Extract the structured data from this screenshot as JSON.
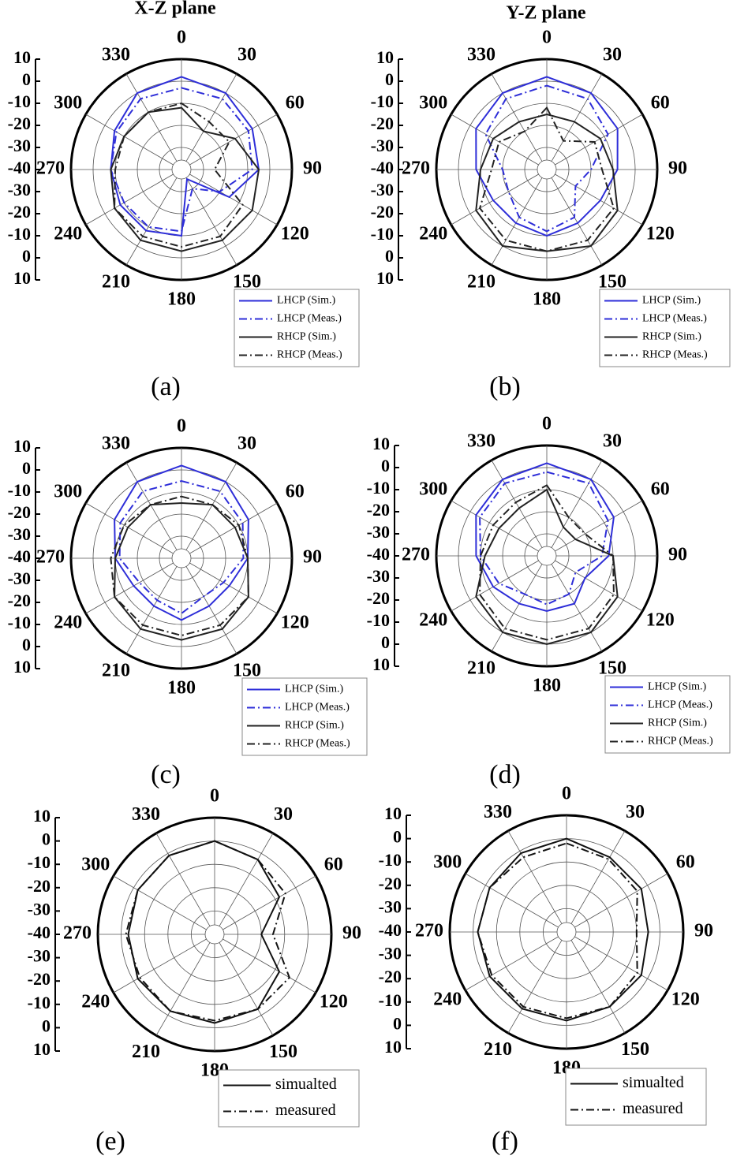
{
  "chart_data": [
    {
      "type": "polar",
      "title": "X-Z plane",
      "caption": "(a)",
      "theta": [
        0,
        30,
        60,
        90,
        120,
        150,
        180,
        210,
        240,
        270,
        300,
        330
      ],
      "rlim": [
        -40,
        10
      ],
      "rticks": [
        -40,
        -30,
        -20,
        -10,
        0,
        10
      ],
      "grid": true,
      "series": [
        {
          "name": "LHCP (Sim.)",
          "color": "#2e2ed8",
          "dash": "solid",
          "values": [
            2,
            0,
            -3,
            -5,
            -15,
            -35,
            -10,
            -8,
            -8,
            -8,
            -5,
            0
          ]
        },
        {
          "name": "LHCP (Meas.)",
          "color": "#2e2ed8",
          "dash": "dashdot",
          "values": [
            -3,
            -3,
            -5,
            -8,
            -20,
            -30,
            -12,
            -10,
            -10,
            -8,
            -6,
            -3
          ]
        },
        {
          "name": "RHCP (Sim.)",
          "color": "#222222",
          "dash": "solid",
          "values": [
            -12,
            -20,
            -12,
            -5,
            -3,
            -3,
            -3,
            -3,
            -5,
            -8,
            -10,
            -10
          ]
        },
        {
          "name": "RHCP (Meas.)",
          "color": "#222222",
          "dash": "dashdot",
          "values": [
            -10,
            -15,
            -15,
            -25,
            -8,
            -5,
            -5,
            -5,
            -5,
            -10,
            -10,
            -10
          ]
        }
      ]
    },
    {
      "type": "polar",
      "title": "Y-Z plane",
      "caption": "(b)",
      "theta": [
        0,
        30,
        60,
        90,
        120,
        150,
        180,
        210,
        240,
        270,
        300,
        330
      ],
      "rlim": [
        -40,
        10
      ],
      "rticks": [
        -40,
        -30,
        -20,
        -10,
        0,
        10
      ],
      "grid": true,
      "series": [
        {
          "name": "LHCP (Sim.)",
          "color": "#2e2ed8",
          "dash": "solid",
          "values": [
            2,
            0,
            -3,
            -8,
            -12,
            -12,
            -10,
            -12,
            -12,
            -8,
            -3,
            0
          ]
        },
        {
          "name": "LHCP (Meas.)",
          "color": "#2e2ed8",
          "dash": "dashdot",
          "values": [
            -2,
            -3,
            -8,
            -20,
            -25,
            -15,
            -12,
            -15,
            -20,
            -20,
            -8,
            -3
          ]
        },
        {
          "name": "RHCP (Sim.)",
          "color": "#222222",
          "dash": "solid",
          "values": [
            -15,
            -15,
            -12,
            -10,
            -3,
            0,
            -3,
            0,
            -3,
            -10,
            -12,
            -15
          ]
        },
        {
          "name": "RHCP (Meas.)",
          "color": "#222222",
          "dash": "dashdot",
          "values": [
            -12,
            -25,
            -15,
            -15,
            -5,
            -3,
            -3,
            -3,
            -5,
            -15,
            -15,
            -20
          ]
        }
      ]
    },
    {
      "type": "polar",
      "caption": "(c)",
      "theta": [
        0,
        30,
        60,
        90,
        120,
        150,
        180,
        210,
        240,
        270,
        300,
        330
      ],
      "rlim": [
        -40,
        10
      ],
      "rticks": [
        -40,
        -30,
        -20,
        -10,
        0,
        10
      ],
      "grid": true,
      "series": [
        {
          "name": "LHCP (Sim.)",
          "color": "#2e2ed8",
          "dash": "solid",
          "values": [
            2,
            0,
            -5,
            -10,
            -15,
            -15,
            -12,
            -15,
            -15,
            -10,
            -5,
            0
          ]
        },
        {
          "name": "LHCP (Meas.)",
          "color": "#2e2ed8",
          "dash": "dashdot",
          "values": [
            -5,
            -5,
            -8,
            -12,
            -18,
            -20,
            -15,
            -18,
            -18,
            -12,
            -8,
            -5
          ]
        },
        {
          "name": "RHCP (Sim.)",
          "color": "#222222",
          "dash": "solid",
          "values": [
            -15,
            -12,
            -12,
            -10,
            -5,
            -3,
            -3,
            -3,
            -5,
            -10,
            -12,
            -12
          ]
        },
        {
          "name": "RHCP (Meas.)",
          "color": "#222222",
          "dash": "dashdot",
          "values": [
            -12,
            -12,
            -10,
            -10,
            -5,
            -5,
            -5,
            -5,
            -5,
            -8,
            -10,
            -12
          ]
        }
      ]
    },
    {
      "type": "polar",
      "caption": "(d)",
      "theta": [
        0,
        30,
        60,
        90,
        120,
        150,
        180,
        210,
        240,
        270,
        300,
        330
      ],
      "rlim": [
        -40,
        10
      ],
      "rticks": [
        -40,
        -30,
        -20,
        -10,
        0,
        10
      ],
      "grid": true,
      "series": [
        {
          "name": "LHCP (Sim.)",
          "color": "#2e2ed8",
          "dash": "solid",
          "values": [
            2,
            0,
            -5,
            -12,
            -20,
            -15,
            -15,
            -15,
            -12,
            -8,
            -3,
            0
          ]
        },
        {
          "name": "LHCP (Meas.)",
          "color": "#2e2ed8",
          "dash": "dashdot",
          "values": [
            -2,
            -2,
            -8,
            -15,
            -25,
            -20,
            -18,
            -20,
            -15,
            -10,
            -5,
            -2
          ]
        },
        {
          "name": "RHCP (Sim.)",
          "color": "#222222",
          "dash": "solid",
          "values": [
            -10,
            -25,
            -25,
            -10,
            -3,
            0,
            0,
            0,
            -3,
            -12,
            -15,
            -15
          ]
        },
        {
          "name": "RHCP (Meas.)",
          "color": "#222222",
          "dash": "dashdot",
          "values": [
            -8,
            -20,
            -20,
            -10,
            -5,
            -2,
            -2,
            -2,
            -5,
            -10,
            -12,
            -12
          ]
        }
      ]
    },
    {
      "type": "polar",
      "caption": "(e)",
      "theta": [
        0,
        30,
        60,
        90,
        120,
        150,
        180,
        210,
        240,
        270,
        300,
        330
      ],
      "rlim": [
        -40,
        10
      ],
      "rticks": [
        -40,
        -30,
        -20,
        -10,
        0,
        10
      ],
      "grid": true,
      "series": [
        {
          "name": "simualted",
          "color": "#111111",
          "dash": "solid",
          "values": [
            0,
            -3,
            -8,
            -20,
            -8,
            -3,
            -2,
            -2,
            -2,
            -3,
            -2,
            -1
          ]
        },
        {
          "name": "measured",
          "color": "#111111",
          "dash": "dashdot",
          "values": [
            0,
            -3,
            -5,
            -15,
            -3,
            -3,
            -3,
            -2,
            -3,
            -2,
            -2,
            -1
          ]
        }
      ]
    },
    {
      "type": "polar",
      "caption": "(f)",
      "theta": [
        0,
        30,
        60,
        90,
        120,
        150,
        180,
        210,
        240,
        270,
        300,
        330
      ],
      "rlim": [
        -40,
        10
      ],
      "rticks": [
        -40,
        -30,
        -20,
        -10,
        0,
        10
      ],
      "grid": true,
      "series": [
        {
          "name": "simualted",
          "color": "#111111",
          "dash": "solid",
          "values": [
            0,
            -3,
            -3,
            -5,
            -3,
            -3,
            -2,
            -2,
            -2,
            -2,
            -2,
            -1
          ]
        },
        {
          "name": "measured",
          "color": "#111111",
          "dash": "dashdot",
          "values": [
            -2,
            -4,
            -5,
            -10,
            -5,
            -3,
            -3,
            -3,
            -3,
            -2,
            -2,
            -3
          ]
        }
      ]
    }
  ]
}
